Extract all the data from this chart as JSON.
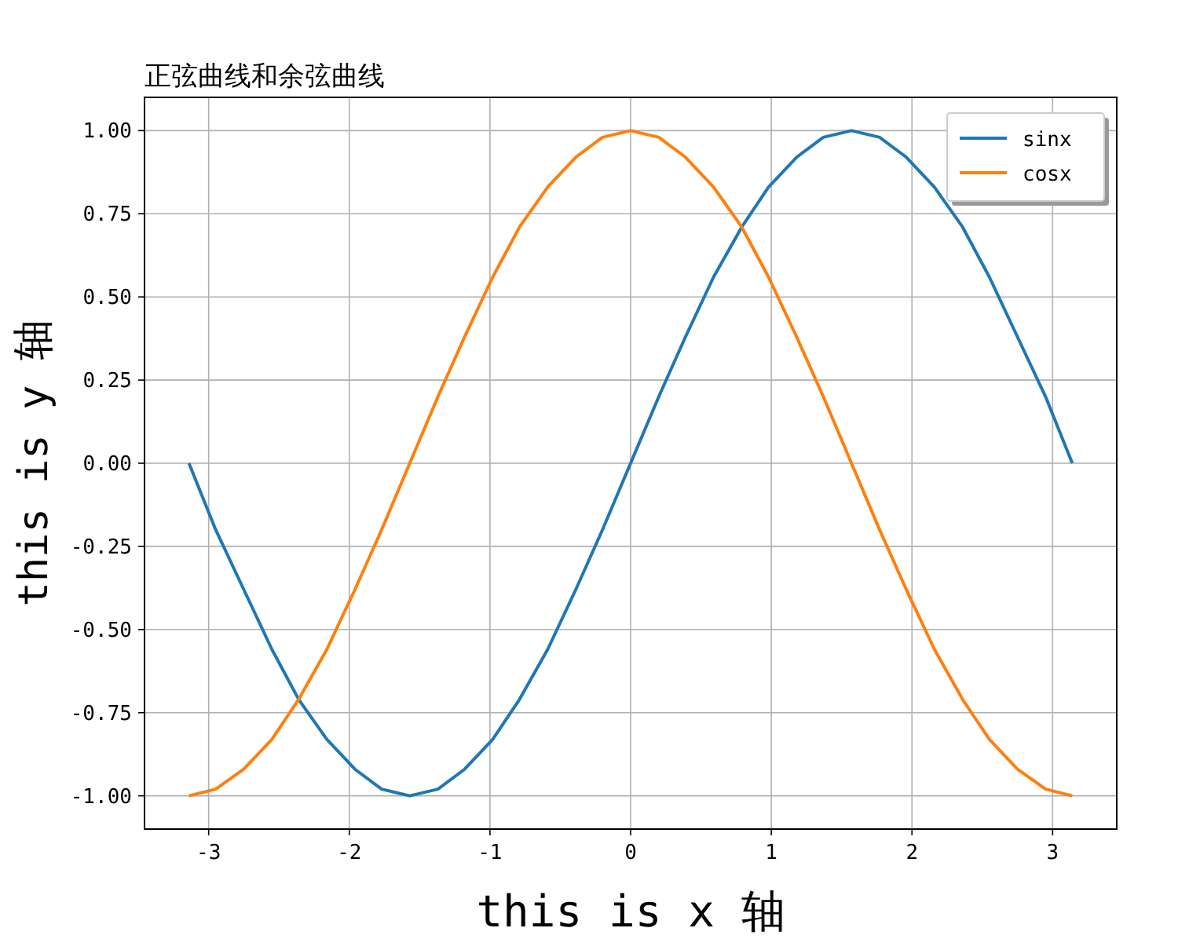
{
  "chart_data": {
    "type": "line",
    "title": "正弦曲线和余弦曲线",
    "xlabel": "this is x 轴",
    "ylabel": "this is y 轴",
    "x": [
      -3.14,
      -2.95,
      -2.75,
      -2.55,
      -2.36,
      -2.16,
      -1.96,
      -1.77,
      -1.57,
      -1.37,
      -1.18,
      -0.98,
      -0.79,
      -0.59,
      -0.39,
      -0.2,
      0,
      0.2,
      0.39,
      0.59,
      0.79,
      0.98,
      1.18,
      1.37,
      1.57,
      1.77,
      1.96,
      2.16,
      2.36,
      2.55,
      2.75,
      2.95,
      3.14
    ],
    "series": [
      {
        "name": "sinx",
        "color": "#1f77b4",
        "values": [
          0,
          -0.2,
          -0.38,
          -0.56,
          -0.71,
          -0.83,
          -0.92,
          -0.98,
          -1,
          -0.98,
          -0.92,
          -0.83,
          -0.71,
          -0.56,
          -0.38,
          -0.2,
          0,
          0.2,
          0.38,
          0.56,
          0.71,
          0.83,
          0.92,
          0.98,
          1,
          0.98,
          0.92,
          0.83,
          0.71,
          0.56,
          0.38,
          0.2,
          0
        ]
      },
      {
        "name": "cosx",
        "color": "#ff7f0e",
        "values": [
          -1,
          -0.98,
          -0.92,
          -0.83,
          -0.71,
          -0.56,
          -0.38,
          -0.2,
          0,
          0.2,
          0.38,
          0.56,
          0.71,
          0.83,
          0.92,
          0.98,
          1,
          0.98,
          0.92,
          0.83,
          0.71,
          0.56,
          0.38,
          0.2,
          0,
          -0.2,
          -0.38,
          -0.56,
          -0.71,
          -0.83,
          -0.92,
          -0.98,
          -1
        ]
      }
    ],
    "xlim": [
      -3.456,
      3.456
    ],
    "ylim": [
      -1.1,
      1.1
    ],
    "xticks": [
      {
        "value": -3,
        "label": "-3"
      },
      {
        "value": -2,
        "label": "-2"
      },
      {
        "value": -1,
        "label": "-1"
      },
      0,
      1,
      2,
      3
    ],
    "yticks": [
      {
        "value": -1,
        "label": "-1.00"
      },
      {
        "value": -0.75,
        "label": "-0.75"
      },
      {
        "value": -0.5,
        "label": "-0.50"
      },
      {
        "value": -0.25,
        "label": "-0.25"
      },
      {
        "value": 0,
        "label": "0.00"
      },
      {
        "value": 0.25,
        "label": "0.25"
      },
      {
        "value": 0.5,
        "label": "0.50"
      },
      {
        "value": 0.75,
        "label": "0.75"
      },
      {
        "value": 1,
        "label": "1.00"
      }
    ],
    "grid": true,
    "legend": "top right",
    "line_style": "solid"
  }
}
